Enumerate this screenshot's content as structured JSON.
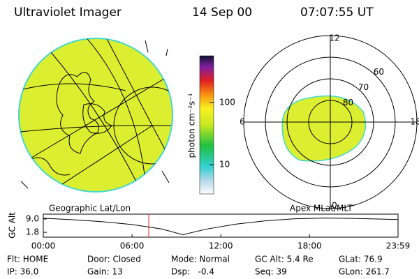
{
  "header": {
    "instrument": "Ultraviolet Imager",
    "date": "14 Sep 00",
    "time": "07:07:55 UT"
  },
  "colorbar": {
    "label": "photon cm⁻²s⁻¹",
    "scale": "log",
    "clim": [
      3.4,
      560
    ],
    "ticks": [
      10,
      100
    ]
  },
  "polar": {
    "rlim": [
      90,
      50
    ],
    "rings": [
      80,
      70,
      60
    ],
    "mlt_labels": [
      12,
      18,
      6,
      0
    ]
  },
  "altitude_plot": {
    "left_label": "Geographic Lat/Lon",
    "right_label": "Apex MLat/MLT",
    "ylabel": "GC Alt",
    "ylim": [
      -0.8,
      11.6
    ],
    "yticks": [
      {
        "value": 9.0,
        "label": "9.0"
      },
      {
        "value": 1.8,
        "label": "1.8"
      }
    ],
    "xlim": [
      0,
      23.98
    ],
    "xticks": [
      {
        "value": 0,
        "label": "00:00"
      },
      {
        "value": 6,
        "label": "06:00"
      },
      {
        "value": 12,
        "label": "12:00"
      },
      {
        "value": 18,
        "label": "18:00"
      },
      {
        "value": 23.98,
        "label": "23:59"
      }
    ],
    "x": [
      0,
      2,
      4,
      6,
      8,
      9.45,
      11,
      13,
      15,
      17,
      19,
      21,
      23.98
    ],
    "values": [
      9.4,
      8.6,
      7.5,
      6.0,
      3.6,
      0.5,
      3.5,
      6.2,
      8.0,
      9.1,
      9.5,
      9.3,
      8.7
    ],
    "color": "#000000",
    "marker_x": 7.13,
    "marker_color": "#e02020"
  },
  "footer": {
    "rows": [
      [
        "Flt: HOME",
        "Door: Closed",
        "Mode: Normal",
        "GC Alt: 5.4 Re",
        "GLat: 76.9"
      ],
      [
        "IP: 36.0",
        "Gain: 13",
        "Dsp:   -0.4",
        "Seq: 39",
        "GLon: 261.7"
      ]
    ]
  }
}
